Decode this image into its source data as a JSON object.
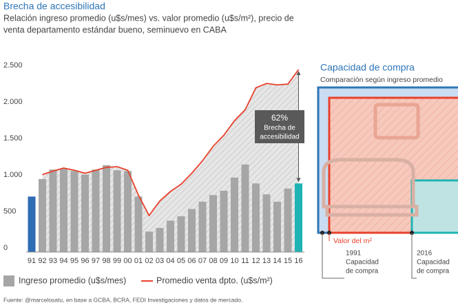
{
  "chart_data": {
    "type": "bar-line",
    "title": "Brecha de accesibilidad",
    "subtitle": [
      "Relación ingreso promedio (u$s/mes)  vs. valor promedio (u$s/m²), precio de",
      "venta departamento estándar bueno, seminuevo en CABA"
    ],
    "categories": [
      "91",
      "92",
      "93",
      "94",
      "95",
      "96",
      "97",
      "98",
      "99",
      "00",
      "01",
      "02",
      "03",
      "04",
      "05",
      "06",
      "07",
      "08",
      "09",
      "10",
      "11",
      "12",
      "13",
      "14",
      "15",
      "16"
    ],
    "series": [
      {
        "name": "Ingreso promedio (u$s/mes)",
        "type": "bar",
        "color": "#a6a6a6",
        "colors": [
          "#2f6db5",
          "#a6a6a6",
          "#a6a6a6",
          "#a6a6a6",
          "#a6a6a6",
          "#a6a6a6",
          "#a6a6a6",
          "#a6a6a6",
          "#a6a6a6",
          "#a6a6a6",
          "#a6a6a6",
          "#a6a6a6",
          "#a6a6a6",
          "#a6a6a6",
          "#a6a6a6",
          "#a6a6a6",
          "#a6a6a6",
          "#a6a6a6",
          "#a6a6a6",
          "#a6a6a6",
          "#a6a6a6",
          "#a6a6a6",
          "#a6a6a6",
          "#a6a6a6",
          "#a6a6a6",
          "#1fb3b3"
        ],
        "values": [
          760,
          1000,
          1130,
          1140,
          1110,
          1060,
          1130,
          1190,
          1120,
          1110,
          760,
          280,
          330,
          430,
          490,
          590,
          690,
          780,
          840,
          1020,
          1200,
          940,
          790,
          690,
          870,
          940
        ]
      },
      {
        "name": "Promedio venta dpto. (u$s/m²)",
        "type": "line",
        "color": "#e8412c",
        "values": [
          null,
          1060,
          1110,
          1150,
          1120,
          1080,
          1120,
          1160,
          1170,
          1120,
          780,
          500,
          700,
          830,
          930,
          1080,
          1250,
          1450,
          1600,
          1800,
          1950,
          2250,
          2310,
          2290,
          2300,
          2500
        ]
      }
    ],
    "ylim": [
      0,
      2500
    ],
    "yticks": [
      {
        "value": 0,
        "label": "0"
      },
      {
        "value": 500,
        "label": "500"
      },
      {
        "value": 1000,
        "label": "1.000"
      },
      {
        "value": 1500,
        "label": "1.500"
      },
      {
        "value": 2000,
        "label": "2.000"
      },
      {
        "value": 2500,
        "label": "2.500"
      }
    ],
    "grid": false,
    "annotation": {
      "value": "62%",
      "text": [
        "Brecha de",
        "accesibilidad"
      ]
    },
    "source": "Fuente: @marcelosatu, en base a GCBA, BCRA, FEDI Investigaciones y datos de mercado."
  },
  "side_panel": {
    "title": "Capacidad de compra",
    "subtitle": "Comparación según ingreso promedio",
    "m2_label": "Valor del m²",
    "label_1991": [
      "1991",
      "Capacidad",
      "de compra"
    ],
    "label_2016": [
      "2016",
      "Capacidad",
      "de compra"
    ]
  }
}
